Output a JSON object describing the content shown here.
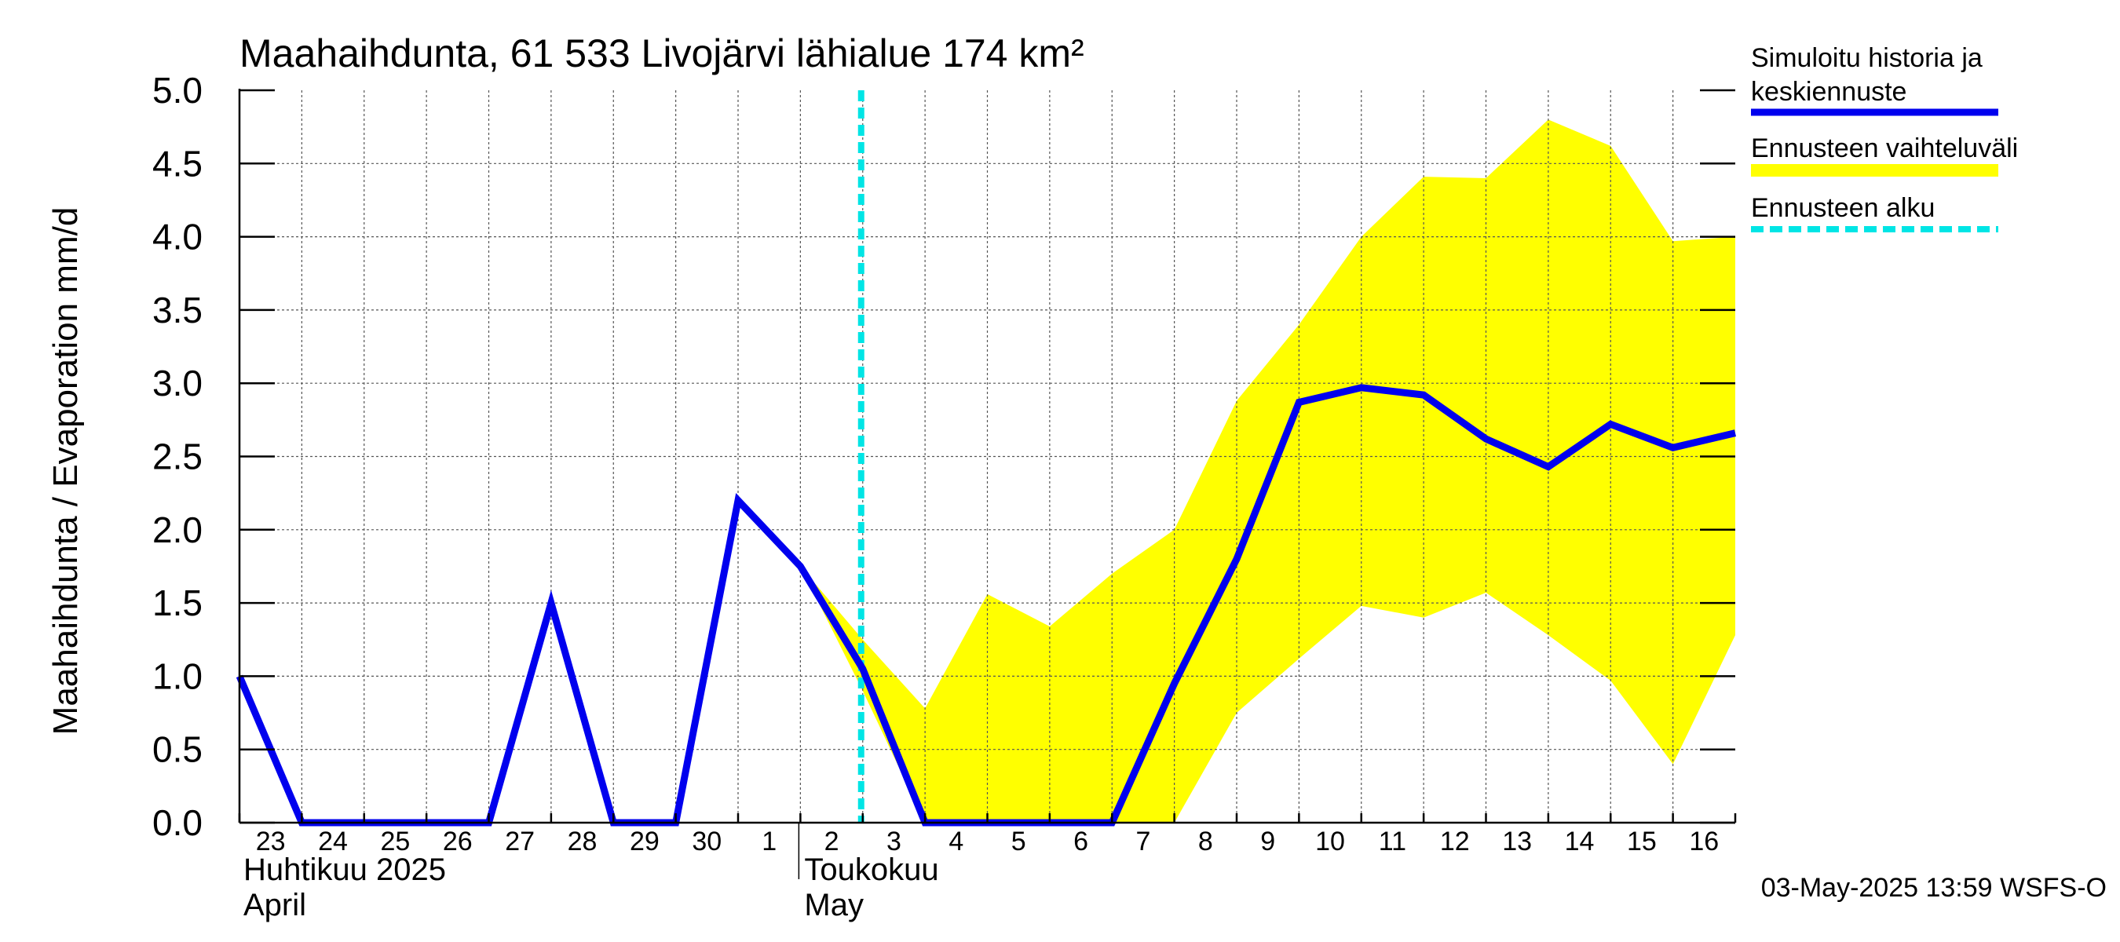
{
  "chart_data": {
    "type": "line",
    "title": "Maahaihdunta, 61 533 Livojärvi lähialue 174 km²",
    "ylabel": "Maahaihdunta / Evaporation   mm/d",
    "ylim": [
      0,
      5
    ],
    "y_ticks": [
      "0.0",
      "0.5",
      "1.0",
      "1.5",
      "2.0",
      "2.5",
      "3.0",
      "3.5",
      "4.0",
      "4.5",
      "5.0"
    ],
    "x_tick_labels": [
      "23",
      "24",
      "25",
      "26",
      "27",
      "28",
      "29",
      "30",
      "1",
      "2",
      "3",
      "4",
      "5",
      "6",
      "7",
      "8",
      "9",
      "10",
      "11",
      "12",
      "13",
      "14",
      "15",
      "16"
    ],
    "month_labels": [
      {
        "line1": "Huhtikuu  2025",
        "line2": "April",
        "at_day": 0
      },
      {
        "line1": "Toukokuu",
        "line2": "May",
        "at_day": 9
      }
    ],
    "forecast_start_day": 10,
    "series": [
      {
        "name": "Simuloitu historia ja keskiennuste",
        "color": "#0000ee",
        "x_days": [
          0,
          1,
          2,
          3,
          4,
          5,
          6,
          7,
          8,
          9,
          10,
          11,
          12,
          13,
          14,
          15,
          16,
          17,
          18,
          19,
          20,
          21,
          22,
          23,
          24
        ],
        "values": [
          1.0,
          0,
          0,
          0,
          0,
          1.5,
          0,
          0,
          2.2,
          1.75,
          1.05,
          0,
          0,
          0,
          0,
          0.95,
          1.8,
          2.87,
          2.97,
          2.92,
          2.62,
          2.43,
          2.72,
          2.56,
          2.66
        ]
      }
    ],
    "band": {
      "name": "Ennusteen vaihteluväli",
      "color": "#ffff00",
      "x_days": [
        9,
        10,
        11,
        12,
        13,
        14,
        15,
        16,
        17,
        18,
        19,
        20,
        21,
        22,
        23,
        24
      ],
      "upper": [
        1.75,
        1.25,
        0.78,
        1.56,
        1.34,
        1.7,
        2.0,
        2.88,
        3.4,
        4.0,
        4.41,
        4.4,
        4.8,
        4.62,
        3.97,
        4.0
      ],
      "lower": [
        1.75,
        0.9,
        0,
        0,
        0,
        0,
        0,
        0.75,
        1.12,
        1.48,
        1.4,
        1.57,
        1.28,
        0.97,
        0.4,
        1.28
      ]
    },
    "legend": [
      {
        "label_lines": [
          "Simuloitu historia ja",
          "keskiennuste"
        ],
        "color": "#0000ee",
        "style": "solid"
      },
      {
        "label_lines": [
          "Ennusteen vaihteluväli"
        ],
        "color": "#ffff00",
        "style": "solid"
      },
      {
        "label_lines": [
          "Ennusteen alku"
        ],
        "color": "#00e5e5",
        "style": "dashed"
      }
    ],
    "legend_position": "right",
    "grid": true,
    "footer": "03-May-2025 13:59 WSFS-O"
  }
}
